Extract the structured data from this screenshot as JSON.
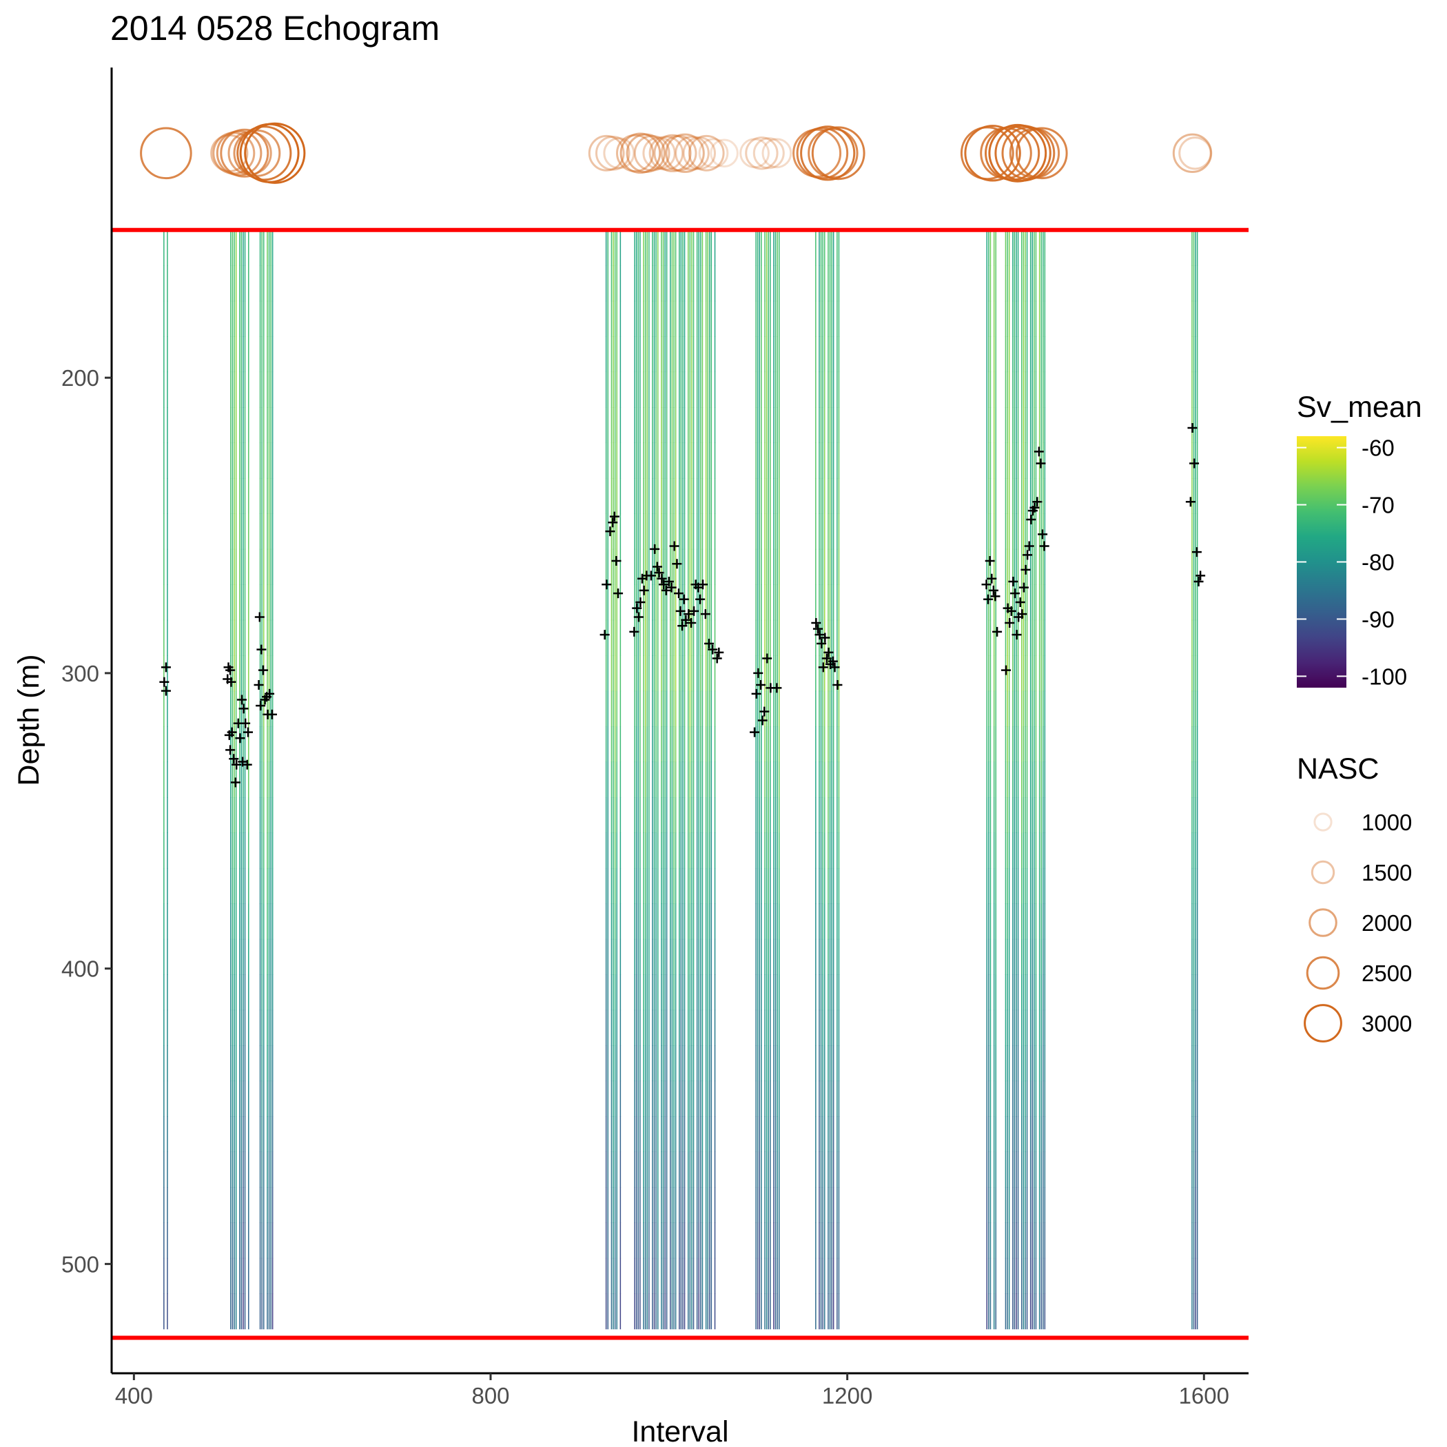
{
  "chart_data": {
    "type": "heatmap",
    "title": "2014 0528 Echogram",
    "xlabel": "Interval",
    "ylabel": "Depth (m)",
    "xlim": [
      375,
      1650
    ],
    "ylim": [
      537,
      95
    ],
    "x_ticks": [
      400,
      800,
      1200,
      1600
    ],
    "y_ticks": [
      200,
      300,
      400,
      500
    ],
    "grid": false,
    "depth_limit_lines": {
      "color": "#ff0000",
      "depths": [
        150,
        525
      ]
    },
    "fill_legend": {
      "title": "Sv_mean",
      "labels": [
        "-60",
        "-70",
        "-80",
        "-90",
        "-100"
      ],
      "values": [
        -60,
        -70,
        -80,
        -90,
        -100
      ],
      "range": [
        -102,
        -58
      ],
      "palette": "viridis"
    },
    "size_legend": {
      "title": "NASC",
      "labels": [
        "1000",
        "1500",
        "2000",
        "2500",
        "3000"
      ],
      "values": [
        1000,
        1500,
        2000,
        2500,
        3000
      ],
      "color": "#d2691e"
    },
    "cell_bottom_depth": 522,
    "interval_columns": [
      {
        "from": 433,
        "to": 437,
        "top": 150,
        "bottom": 522
      },
      {
        "from": 506,
        "to": 528,
        "top": 150,
        "bottom": 522
      },
      {
        "from": 541,
        "to": 555,
        "top": 150,
        "bottom": 522
      },
      {
        "from": 929,
        "to": 945,
        "top": 150,
        "bottom": 522
      },
      {
        "from": 961,
        "to": 1052,
        "top": 150,
        "bottom": 522
      },
      {
        "from": 1095,
        "to": 1125,
        "top": 150,
        "bottom": 522
      },
      {
        "from": 1164,
        "to": 1191,
        "top": 150,
        "bottom": 522
      },
      {
        "from": 1356,
        "to": 1367,
        "top": 150,
        "bottom": 522
      },
      {
        "from": 1377,
        "to": 1424,
        "top": 150,
        "bottom": 522
      },
      {
        "from": 1586,
        "to": 1592,
        "top": 150,
        "bottom": 522
      }
    ],
    "nasc_row_depth": 124,
    "nasc_points": [
      {
        "x": 436,
        "nasc": 2500
      },
      {
        "x": 507,
        "nasc": 1600
      },
      {
        "x": 512,
        "nasc": 1900
      },
      {
        "x": 518,
        "nasc": 2100
      },
      {
        "x": 524,
        "nasc": 2300
      },
      {
        "x": 530,
        "nasc": 2000
      },
      {
        "x": 538,
        "nasc": 2200
      },
      {
        "x": 546,
        "nasc": 2700
      },
      {
        "x": 552,
        "nasc": 3000
      },
      {
        "x": 558,
        "nasc": 3100
      },
      {
        "x": 930,
        "nasc": 1500
      },
      {
        "x": 937,
        "nasc": 1400
      },
      {
        "x": 944,
        "nasc": 1200
      },
      {
        "x": 962,
        "nasc": 1600
      },
      {
        "x": 968,
        "nasc": 1800
      },
      {
        "x": 974,
        "nasc": 1700
      },
      {
        "x": 981,
        "nasc": 1500
      },
      {
        "x": 989,
        "nasc": 1300
      },
      {
        "x": 997,
        "nasc": 1400
      },
      {
        "x": 1004,
        "nasc": 1600
      },
      {
        "x": 1011,
        "nasc": 1500
      },
      {
        "x": 1018,
        "nasc": 1700
      },
      {
        "x": 1026,
        "nasc": 1400
      },
      {
        "x": 1034,
        "nasc": 1300
      },
      {
        "x": 1042,
        "nasc": 1500
      },
      {
        "x": 1050,
        "nasc": 1100
      },
      {
        "x": 1062,
        "nasc": 1000
      },
      {
        "x": 1096,
        "nasc": 1100
      },
      {
        "x": 1104,
        "nasc": 1300
      },
      {
        "x": 1112,
        "nasc": 1200
      },
      {
        "x": 1121,
        "nasc": 1100
      },
      {
        "x": 1166,
        "nasc": 2300
      },
      {
        "x": 1172,
        "nasc": 2500
      },
      {
        "x": 1178,
        "nasc": 2700
      },
      {
        "x": 1184,
        "nasc": 2400
      },
      {
        "x": 1190,
        "nasc": 2600
      },
      {
        "x": 1357,
        "nasc": 2600
      },
      {
        "x": 1363,
        "nasc": 2800
      },
      {
        "x": 1378,
        "nasc": 2500
      },
      {
        "x": 1385,
        "nasc": 2700
      },
      {
        "x": 1391,
        "nasc": 2900
      },
      {
        "x": 1397,
        "nasc": 2800
      },
      {
        "x": 1403,
        "nasc": 2600
      },
      {
        "x": 1410,
        "nasc": 2400
      },
      {
        "x": 1418,
        "nasc": 2500
      },
      {
        "x": 1587,
        "nasc": 1700
      },
      {
        "x": 1590,
        "nasc": 1300
      }
    ],
    "layer_points": [
      {
        "x": 436,
        "y": 298
      },
      {
        "x": 434,
        "y": 303
      },
      {
        "x": 436,
        "y": 306
      },
      {
        "x": 506,
        "y": 298
      },
      {
        "x": 508,
        "y": 299
      },
      {
        "x": 505,
        "y": 302
      },
      {
        "x": 509,
        "y": 303
      },
      {
        "x": 507,
        "y": 321
      },
      {
        "x": 510,
        "y": 320
      },
      {
        "x": 508,
        "y": 326
      },
      {
        "x": 512,
        "y": 329
      },
      {
        "x": 515,
        "y": 331
      },
      {
        "x": 514,
        "y": 337
      },
      {
        "x": 517,
        "y": 317
      },
      {
        "x": 519,
        "y": 322
      },
      {
        "x": 521,
        "y": 309
      },
      {
        "x": 523,
        "y": 312
      },
      {
        "x": 522,
        "y": 330
      },
      {
        "x": 525,
        "y": 317
      },
      {
        "x": 527,
        "y": 331
      },
      {
        "x": 528,
        "y": 320
      },
      {
        "x": 541,
        "y": 281
      },
      {
        "x": 543,
        "y": 292
      },
      {
        "x": 540,
        "y": 304
      },
      {
        "x": 542,
        "y": 311
      },
      {
        "x": 545,
        "y": 299
      },
      {
        "x": 547,
        "y": 309
      },
      {
        "x": 549,
        "y": 308
      },
      {
        "x": 550,
        "y": 314
      },
      {
        "x": 552,
        "y": 307
      },
      {
        "x": 555,
        "y": 314
      },
      {
        "x": 928,
        "y": 287
      },
      {
        "x": 930,
        "y": 270
      },
      {
        "x": 934,
        "y": 252
      },
      {
        "x": 937,
        "y": 249
      },
      {
        "x": 939,
        "y": 247
      },
      {
        "x": 941,
        "y": 262
      },
      {
        "x": 943,
        "y": 273
      },
      {
        "x": 961,
        "y": 286
      },
      {
        "x": 964,
        "y": 278
      },
      {
        "x": 966,
        "y": 281
      },
      {
        "x": 968,
        "y": 276
      },
      {
        "x": 970,
        "y": 268
      },
      {
        "x": 972,
        "y": 272
      },
      {
        "x": 975,
        "y": 267
      },
      {
        "x": 980,
        "y": 267
      },
      {
        "x": 984,
        "y": 258
      },
      {
        "x": 987,
        "y": 264
      },
      {
        "x": 989,
        "y": 266
      },
      {
        "x": 992,
        "y": 268
      },
      {
        "x": 994,
        "y": 270
      },
      {
        "x": 997,
        "y": 272
      },
      {
        "x": 1000,
        "y": 269
      },
      {
        "x": 1003,
        "y": 271
      },
      {
        "x": 1006,
        "y": 257
      },
      {
        "x": 1009,
        "y": 263
      },
      {
        "x": 1011,
        "y": 273
      },
      {
        "x": 1013,
        "y": 279
      },
      {
        "x": 1015,
        "y": 284
      },
      {
        "x": 1017,
        "y": 275
      },
      {
        "x": 1019,
        "y": 282
      },
      {
        "x": 1022,
        "y": 280
      },
      {
        "x": 1025,
        "y": 283
      },
      {
        "x": 1028,
        "y": 279
      },
      {
        "x": 1030,
        "y": 270
      },
      {
        "x": 1033,
        "y": 271
      },
      {
        "x": 1035,
        "y": 275
      },
      {
        "x": 1038,
        "y": 270
      },
      {
        "x": 1041,
        "y": 280
      },
      {
        "x": 1045,
        "y": 290
      },
      {
        "x": 1049,
        "y": 292
      },
      {
        "x": 1054,
        "y": 295
      },
      {
        "x": 1056,
        "y": 293
      },
      {
        "x": 1096,
        "y": 320
      },
      {
        "x": 1098,
        "y": 307
      },
      {
        "x": 1100,
        "y": 300
      },
      {
        "x": 1103,
        "y": 304
      },
      {
        "x": 1105,
        "y": 316
      },
      {
        "x": 1107,
        "y": 313
      },
      {
        "x": 1110,
        "y": 295
      },
      {
        "x": 1114,
        "y": 305
      },
      {
        "x": 1121,
        "y": 305
      },
      {
        "x": 1165,
        "y": 283
      },
      {
        "x": 1167,
        "y": 285
      },
      {
        "x": 1169,
        "y": 287
      },
      {
        "x": 1171,
        "y": 290
      },
      {
        "x": 1173,
        "y": 298
      },
      {
        "x": 1175,
        "y": 288
      },
      {
        "x": 1177,
        "y": 295
      },
      {
        "x": 1179,
        "y": 293
      },
      {
        "x": 1181,
        "y": 297
      },
      {
        "x": 1184,
        "y": 296
      },
      {
        "x": 1186,
        "y": 298
      },
      {
        "x": 1189,
        "y": 304
      },
      {
        "x": 1356,
        "y": 270
      },
      {
        "x": 1358,
        "y": 275
      },
      {
        "x": 1360,
        "y": 262
      },
      {
        "x": 1362,
        "y": 268
      },
      {
        "x": 1364,
        "y": 272
      },
      {
        "x": 1366,
        "y": 274
      },
      {
        "x": 1368,
        "y": 286
      },
      {
        "x": 1378,
        "y": 299
      },
      {
        "x": 1380,
        "y": 278
      },
      {
        "x": 1382,
        "y": 283
      },
      {
        "x": 1384,
        "y": 279
      },
      {
        "x": 1386,
        "y": 269
      },
      {
        "x": 1388,
        "y": 273
      },
      {
        "x": 1390,
        "y": 287
      },
      {
        "x": 1392,
        "y": 281
      },
      {
        "x": 1394,
        "y": 276
      },
      {
        "x": 1396,
        "y": 280
      },
      {
        "x": 1398,
        "y": 271
      },
      {
        "x": 1400,
        "y": 265
      },
      {
        "x": 1402,
        "y": 260
      },
      {
        "x": 1404,
        "y": 257
      },
      {
        "x": 1406,
        "y": 248
      },
      {
        "x": 1408,
        "y": 245
      },
      {
        "x": 1410,
        "y": 244
      },
      {
        "x": 1413,
        "y": 242
      },
      {
        "x": 1415,
        "y": 225
      },
      {
        "x": 1417,
        "y": 229
      },
      {
        "x": 1419,
        "y": 253
      },
      {
        "x": 1421,
        "y": 257
      },
      {
        "x": 1585,
        "y": 242
      },
      {
        "x": 1587,
        "y": 217
      },
      {
        "x": 1589,
        "y": 229
      },
      {
        "x": 1592,
        "y": 259
      },
      {
        "x": 1594,
        "y": 269
      },
      {
        "x": 1596,
        "y": 267
      }
    ]
  }
}
